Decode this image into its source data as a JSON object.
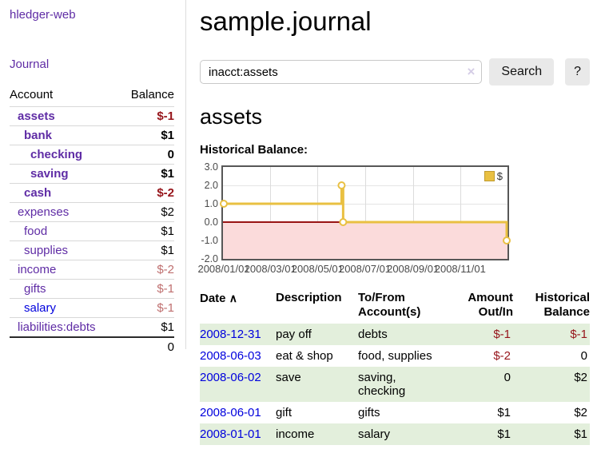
{
  "app": {
    "brand": "hledger-web"
  },
  "sidebar": {
    "nav": {
      "journal": "Journal"
    },
    "accounts": {
      "headers": {
        "account": "Account",
        "balance": "Balance"
      },
      "rows": [
        {
          "label": "assets",
          "level": 0,
          "bold": true,
          "balance": "$-1",
          "tone": "dark-red"
        },
        {
          "label": "bank",
          "level": 1,
          "bold": true,
          "balance": "$1",
          "tone": null
        },
        {
          "label": "checking",
          "level": 2,
          "bold": true,
          "balance": "0",
          "tone": null
        },
        {
          "label": "saving",
          "level": 2,
          "bold": true,
          "balance": "$1",
          "tone": null
        },
        {
          "label": "cash",
          "level": 1,
          "bold": true,
          "balance": "$-2",
          "tone": "dark-red"
        },
        {
          "label": "expenses",
          "level": 0,
          "bold": false,
          "balance": "$2",
          "tone": null
        },
        {
          "label": "food",
          "level": 1,
          "bold": false,
          "balance": "$1",
          "tone": null
        },
        {
          "label": "supplies",
          "level": 1,
          "bold": false,
          "balance": "$1",
          "tone": null
        },
        {
          "label": "income",
          "level": 0,
          "bold": false,
          "balance": "$-2",
          "tone": "light-red"
        },
        {
          "label": "gifts",
          "level": 1,
          "bold": false,
          "balance": "$-1",
          "tone": "light-red"
        },
        {
          "label": "salary",
          "level": 1,
          "bold": false,
          "balance": "$-1",
          "tone": "light-red",
          "unvisited": true
        },
        {
          "label": "liabilities:debts",
          "level": 0,
          "bold": false,
          "balance": "$1",
          "tone": null
        }
      ],
      "total": "0"
    }
  },
  "header": {
    "title": "sample.journal"
  },
  "search": {
    "query": "inacct:assets",
    "clear_icon": "×",
    "button": "Search",
    "help_button": "?"
  },
  "account_page": {
    "heading": "assets",
    "chart_label": "Historical Balance:"
  },
  "chart_data": {
    "type": "line",
    "style": "step",
    "title": "Historical Balance",
    "series": [
      {
        "name": "$",
        "color": "#e9c042",
        "points": [
          [
            "2008/01/01",
            1.0
          ],
          [
            "2008/06/01",
            2.0
          ],
          [
            "2008/06/03",
            0.0
          ],
          [
            "2008/12/31",
            -1.0
          ]
        ]
      }
    ],
    "x_ticks": [
      "2008/01/01",
      "2008/03/01",
      "2008/05/01",
      "2008/07/01",
      "2008/09/01",
      "2008/11/01"
    ],
    "y_ticks": [
      "3.0",
      "2.0",
      "1.0",
      "0.0",
      "-1.0",
      "-2.0"
    ],
    "ylim": [
      -2,
      3
    ],
    "xlim": [
      "2008/01/01",
      "2008/12/31"
    ],
    "legend_position": "top-right",
    "grid": true,
    "negative_region_color": "#fbdbdb",
    "zero_line_color": "#991414"
  },
  "register": {
    "headers": {
      "date": "Date",
      "sort_icon": "∧",
      "description": "Description",
      "accounts": "To/From\nAccount(s)",
      "amount": "Amount\nOut/In",
      "balance": "Historical\nBalance"
    },
    "rows": [
      {
        "date": "2008-12-31",
        "description": "pay off",
        "accounts": "debts",
        "amount": "$-1",
        "balance": "$-1"
      },
      {
        "date": "2008-06-03",
        "description": "eat & shop",
        "accounts": "food, supplies",
        "amount": "$-2",
        "balance": "0"
      },
      {
        "date": "2008-06-02",
        "description": "save",
        "accounts": "saving, checking",
        "amount": "0",
        "balance": "$2"
      },
      {
        "date": "2008-06-01",
        "description": "gift",
        "accounts": "gifts",
        "amount": "$1",
        "balance": "$2"
      },
      {
        "date": "2008-01-01",
        "description": "income",
        "accounts": "salary",
        "amount": "$1",
        "balance": "$1"
      }
    ]
  },
  "colors": {
    "link_purple": "#5f2ca5",
    "link_blue": "#0000dd",
    "negative_dark": "#96141a",
    "negative_light": "#bf6f6f",
    "row_stripe_green": "#e3efdc",
    "chart_gold": "#e9c042",
    "button_gray": "#e9e9e9"
  }
}
